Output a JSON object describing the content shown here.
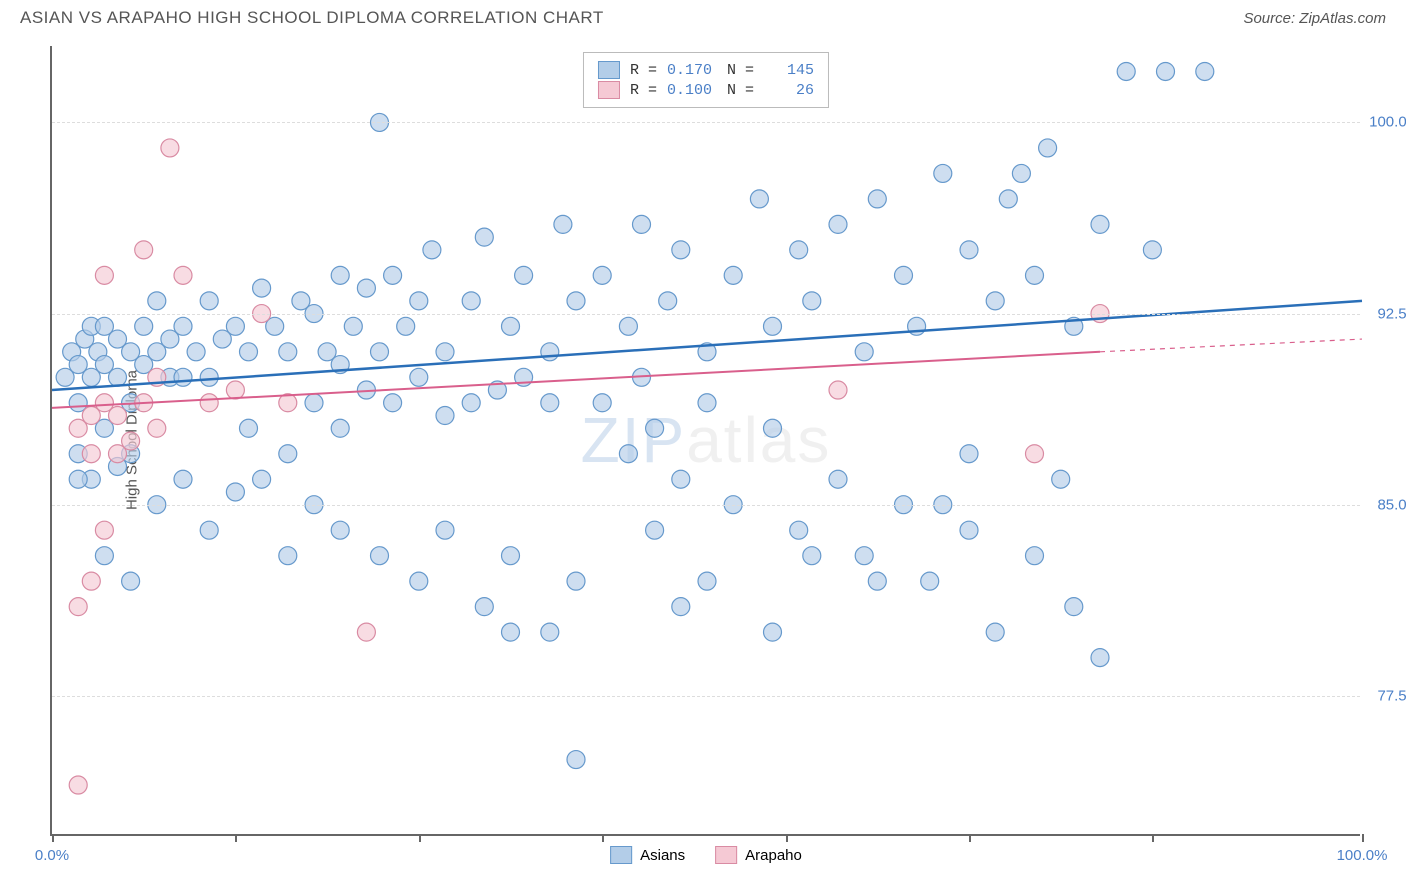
{
  "header": {
    "title": "ASIAN VS ARAPAHO HIGH SCHOOL DIPLOMA CORRELATION CHART",
    "source_label": "Source: ZipAtlas.com"
  },
  "chart": {
    "type": "scatter",
    "ylabel": "High School Diploma",
    "watermark": {
      "part1": "ZIP",
      "part2": "atlas"
    },
    "xlim": [
      0,
      100
    ],
    "ylim": [
      72,
      103
    ],
    "x_ticks": [
      0,
      14,
      28,
      42,
      56,
      70,
      84,
      100
    ],
    "x_tick_labels": {
      "0": "0.0%",
      "100": "100.0%"
    },
    "y_gridlines": [
      77.5,
      85.0,
      92.5,
      100.0
    ],
    "y_tick_labels": [
      "77.5%",
      "85.0%",
      "92.5%",
      "100.0%"
    ],
    "background_color": "#ffffff",
    "grid_color": "#dddddd",
    "axis_color": "#666666",
    "tick_label_color": "#4a7fc7",
    "series": [
      {
        "name": "Asians",
        "label": "Asians",
        "R": "0.170",
        "N": "145",
        "marker_fill": "#b3cde8",
        "marker_stroke": "#6699cc",
        "marker_radius": 9,
        "marker_opacity": 0.65,
        "line_color": "#2a6fb8",
        "line_width": 2.5,
        "regression": {
          "x1": 0,
          "y1": 89.5,
          "x2": 100,
          "y2": 93.0
        },
        "points": [
          [
            1,
            90
          ],
          [
            1.5,
            91
          ],
          [
            2,
            90.5
          ],
          [
            2,
            89
          ],
          [
            2.5,
            91.5
          ],
          [
            3,
            92
          ],
          [
            3,
            90
          ],
          [
            3.5,
            91
          ],
          [
            4,
            90.5
          ],
          [
            4,
            92
          ],
          [
            5,
            91.5
          ],
          [
            5,
            90
          ],
          [
            6,
            91
          ],
          [
            6,
            89
          ],
          [
            7,
            92
          ],
          [
            7,
            90.5
          ],
          [
            8,
            91
          ],
          [
            8,
            93
          ],
          [
            9,
            90
          ],
          [
            9,
            91.5
          ],
          [
            10,
            92
          ],
          [
            10,
            90
          ],
          [
            11,
            91
          ],
          [
            12,
            93
          ],
          [
            12,
            90
          ],
          [
            13,
            91.5
          ],
          [
            14,
            92
          ],
          [
            15,
            91
          ],
          [
            16,
            93.5
          ],
          [
            17,
            92
          ],
          [
            18,
            91
          ],
          [
            19,
            93
          ],
          [
            20,
            92.5
          ],
          [
            21,
            91
          ],
          [
            22,
            94
          ],
          [
            23,
            92
          ],
          [
            24,
            93.5
          ],
          [
            25,
            91
          ],
          [
            26,
            94
          ],
          [
            27,
            92
          ],
          [
            28,
            93
          ],
          [
            29,
            95
          ],
          [
            30,
            91
          ],
          [
            32,
            93
          ],
          [
            33,
            95.5
          ],
          [
            35,
            92
          ],
          [
            36,
            94
          ],
          [
            38,
            91
          ],
          [
            39,
            96
          ],
          [
            40,
            93
          ],
          [
            2,
            87
          ],
          [
            3,
            86
          ],
          [
            4,
            88
          ],
          [
            5,
            86.5
          ],
          [
            6,
            87
          ],
          [
            8,
            85
          ],
          [
            10,
            86
          ],
          [
            12,
            84
          ],
          [
            14,
            85.5
          ],
          [
            16,
            86
          ],
          [
            18,
            83
          ],
          [
            20,
            85
          ],
          [
            22,
            84
          ],
          [
            25,
            83
          ],
          [
            28,
            82
          ],
          [
            30,
            84
          ],
          [
            33,
            81
          ],
          [
            35,
            83
          ],
          [
            38,
            80
          ],
          [
            40,
            82
          ],
          [
            42,
            94
          ],
          [
            44,
            92
          ],
          [
            45,
            96
          ],
          [
            47,
            93
          ],
          [
            48,
            95
          ],
          [
            50,
            91
          ],
          [
            52,
            94
          ],
          [
            54,
            97
          ],
          [
            55,
            92
          ],
          [
            57,
            95
          ],
          [
            58,
            93
          ],
          [
            60,
            96
          ],
          [
            62,
            91
          ],
          [
            63,
            97
          ],
          [
            65,
            94
          ],
          [
            66,
            92
          ],
          [
            68,
            98
          ],
          [
            70,
            95
          ],
          [
            72,
            93
          ],
          [
            73,
            97
          ],
          [
            75,
            94
          ],
          [
            76,
            99
          ],
          [
            78,
            92
          ],
          [
            80,
            96
          ],
          [
            82,
            102
          ],
          [
            84,
            95
          ],
          [
            85,
            102
          ],
          [
            88,
            102
          ],
          [
            74,
            98
          ],
          [
            77,
            86
          ],
          [
            42,
            89
          ],
          [
            44,
            87
          ],
          [
            46,
            88
          ],
          [
            48,
            86
          ],
          [
            50,
            89
          ],
          [
            52,
            85
          ],
          [
            55,
            88
          ],
          [
            57,
            84
          ],
          [
            60,
            86
          ],
          [
            62,
            83
          ],
          [
            65,
            85
          ],
          [
            67,
            82
          ],
          [
            70,
            84
          ],
          [
            72,
            80
          ],
          [
            75,
            83
          ],
          [
            78,
            81
          ],
          [
            80,
            79
          ],
          [
            46,
            84
          ],
          [
            50,
            82
          ],
          [
            35,
            80
          ],
          [
            40,
            75
          ],
          [
            48,
            81
          ],
          [
            55,
            80
          ],
          [
            58,
            83
          ],
          [
            63,
            82
          ],
          [
            68,
            85
          ],
          [
            70,
            87
          ],
          [
            4,
            83
          ],
          [
            6,
            82
          ],
          [
            2,
            86
          ],
          [
            15,
            88
          ],
          [
            18,
            87
          ],
          [
            20,
            89
          ],
          [
            22,
            88
          ],
          [
            24,
            89.5
          ],
          [
            26,
            89
          ],
          [
            28,
            90
          ],
          [
            30,
            88.5
          ],
          [
            32,
            89
          ],
          [
            34,
            89.5
          ],
          [
            25,
            100
          ],
          [
            36,
            90
          ],
          [
            38,
            89
          ],
          [
            22,
            90.5
          ],
          [
            45,
            90
          ]
        ]
      },
      {
        "name": "Arapaho",
        "label": "Arapaho",
        "R": "0.100",
        "N": "26",
        "marker_fill": "#f5c9d4",
        "marker_stroke": "#d98ba3",
        "marker_radius": 9,
        "marker_opacity": 0.65,
        "line_color": "#d95f8c",
        "line_width": 2,
        "regression": {
          "x1": 0,
          "y1": 88.8,
          "x2": 80,
          "y2": 91.0
        },
        "regression_dashed_ext": {
          "x1": 80,
          "y1": 91.0,
          "x2": 100,
          "y2": 91.5
        },
        "points": [
          [
            2,
            88
          ],
          [
            3,
            87
          ],
          [
            4,
            89
          ],
          [
            5,
            88.5
          ],
          [
            6,
            87.5
          ],
          [
            7,
            89
          ],
          [
            3,
            82
          ],
          [
            4,
            84
          ],
          [
            2,
            81
          ],
          [
            9,
            99
          ],
          [
            7,
            95
          ],
          [
            10,
            94
          ],
          [
            4,
            94
          ],
          [
            8,
            88
          ],
          [
            12,
            89
          ],
          [
            14,
            89.5
          ],
          [
            16,
            92.5
          ],
          [
            24,
            80
          ],
          [
            2,
            74
          ],
          [
            3,
            88.5
          ],
          [
            5,
            87
          ],
          [
            8,
            90
          ],
          [
            60,
            89.5
          ],
          [
            80,
            92.5
          ],
          [
            75,
            87
          ],
          [
            18,
            89
          ]
        ]
      }
    ],
    "legend_bottom": [
      {
        "label": "Asians",
        "fill": "#b3cde8",
        "stroke": "#6699cc"
      },
      {
        "label": "Arapaho",
        "fill": "#f5c9d4",
        "stroke": "#d98ba3"
      }
    ]
  }
}
